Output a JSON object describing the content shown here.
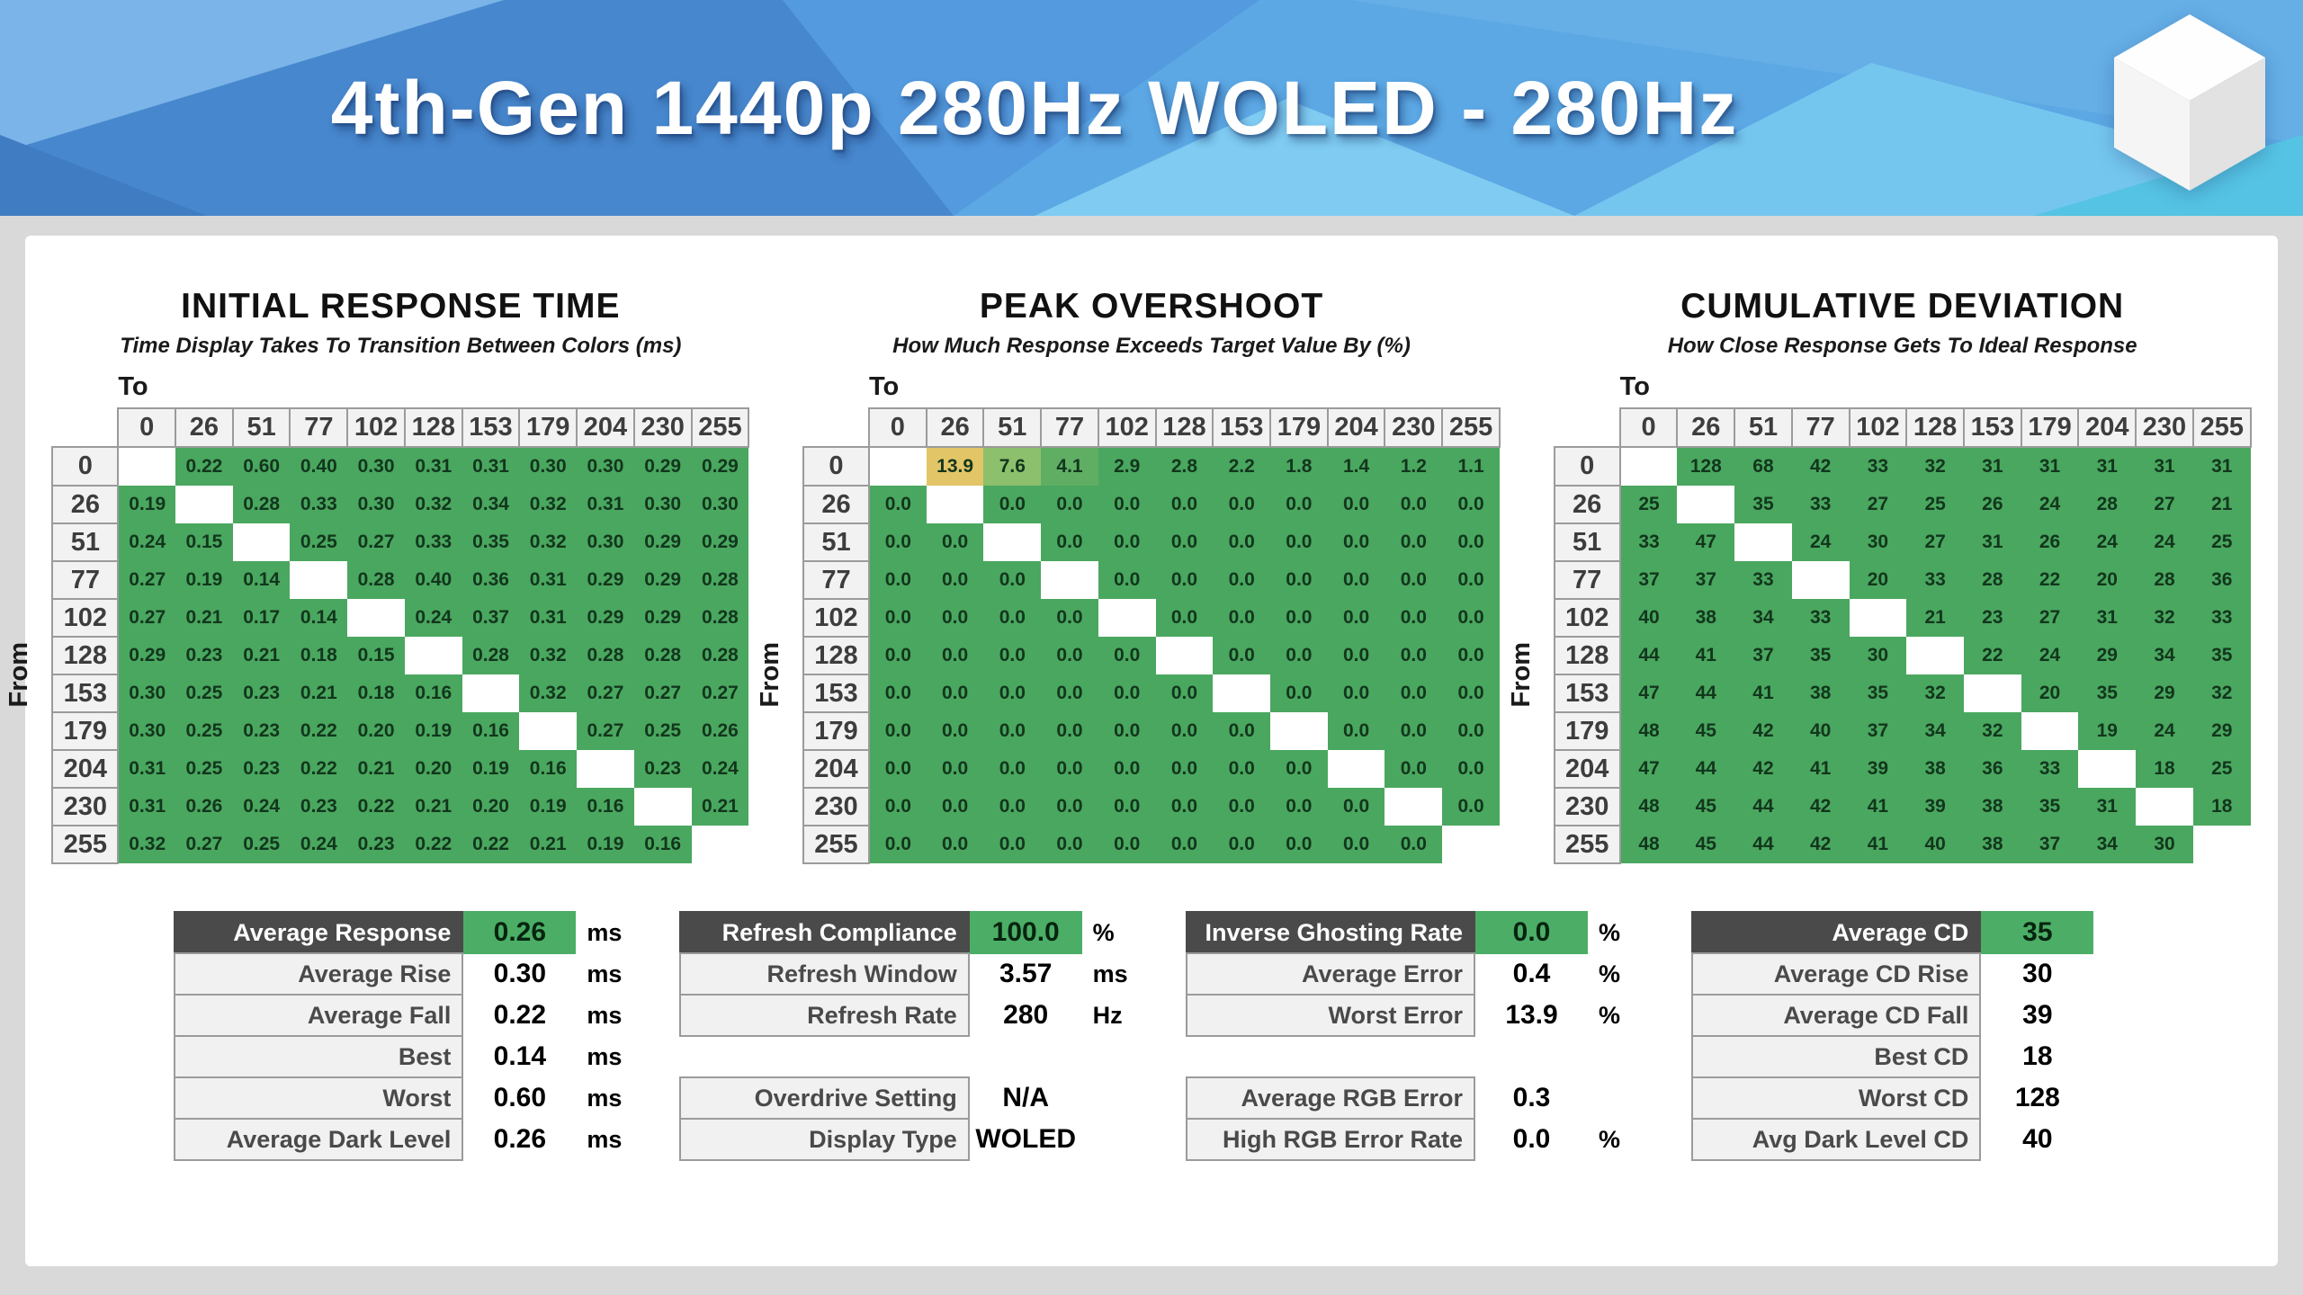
{
  "banner": {
    "title": "4th-Gen 1440p 280Hz WOLED - 280Hz",
    "cube_icon": "cube-logo",
    "colors": {
      "base_blue": "#4f94da",
      "dark_blue": "#4787cd",
      "light_blue": "#7ab4e8",
      "mid_blue": "#5ca8e4",
      "cyan": "#7fcbf1",
      "deep_cyan": "#55c3e4"
    }
  },
  "colors": {
    "page_background": "#d9d9d9",
    "panel_background": "#ffffff",
    "cell_green": "#4aa75f",
    "header_cell_gray": "#f2f2f2",
    "summary_header_dark": "#4a4a4a",
    "summary_value_green": "#4cae66",
    "overshoot_yellow": "#e2c566"
  },
  "chart_data": [
    {
      "type": "heatmap",
      "title": "INITIAL RESPONSE TIME",
      "subtitle": "Time Display Takes To Transition Between Colors (ms)",
      "to_label": "To",
      "from_label": "From",
      "levels": [
        "0",
        "26",
        "51",
        "77",
        "102",
        "128",
        "153",
        "179",
        "204",
        "230",
        "255"
      ],
      "rows": [
        [
          null,
          "0.22",
          "0.60",
          "0.40",
          "0.30",
          "0.31",
          "0.31",
          "0.30",
          "0.30",
          "0.29",
          "0.29"
        ],
        [
          "0.19",
          null,
          "0.28",
          "0.33",
          "0.30",
          "0.32",
          "0.34",
          "0.32",
          "0.31",
          "0.30",
          "0.30"
        ],
        [
          "0.24",
          "0.15",
          null,
          "0.25",
          "0.27",
          "0.33",
          "0.35",
          "0.32",
          "0.30",
          "0.29",
          "0.29"
        ],
        [
          "0.27",
          "0.19",
          "0.14",
          null,
          "0.28",
          "0.40",
          "0.36",
          "0.31",
          "0.29",
          "0.29",
          "0.28"
        ],
        [
          "0.27",
          "0.21",
          "0.17",
          "0.14",
          null,
          "0.24",
          "0.37",
          "0.31",
          "0.29",
          "0.29",
          "0.28"
        ],
        [
          "0.29",
          "0.23",
          "0.21",
          "0.18",
          "0.15",
          null,
          "0.28",
          "0.32",
          "0.28",
          "0.28",
          "0.28"
        ],
        [
          "0.30",
          "0.25",
          "0.23",
          "0.21",
          "0.18",
          "0.16",
          null,
          "0.32",
          "0.27",
          "0.27",
          "0.27"
        ],
        [
          "0.30",
          "0.25",
          "0.23",
          "0.22",
          "0.20",
          "0.19",
          "0.16",
          null,
          "0.27",
          "0.25",
          "0.26"
        ],
        [
          "0.31",
          "0.25",
          "0.23",
          "0.22",
          "0.21",
          "0.20",
          "0.19",
          "0.16",
          null,
          "0.23",
          "0.24"
        ],
        [
          "0.31",
          "0.26",
          "0.24",
          "0.23",
          "0.22",
          "0.21",
          "0.20",
          "0.19",
          "0.16",
          null,
          "0.21"
        ],
        [
          "0.32",
          "0.27",
          "0.25",
          "0.24",
          "0.23",
          "0.22",
          "0.22",
          "0.21",
          "0.19",
          "0.16",
          null
        ]
      ]
    },
    {
      "type": "heatmap",
      "title": "PEAK OVERSHOOT",
      "subtitle": "How Much Response Exceeds Target Value By (%)",
      "to_label": "To",
      "from_label": "From",
      "levels": [
        "0",
        "26",
        "51",
        "77",
        "102",
        "128",
        "153",
        "179",
        "204",
        "230",
        "255"
      ],
      "highlights": {
        "0,1": "#e2c566",
        "0,2": "#8cc06c",
        "0,3": "#5fae63"
      },
      "rows": [
        [
          null,
          "13.9",
          "7.6",
          "4.1",
          "2.9",
          "2.8",
          "2.2",
          "1.8",
          "1.4",
          "1.2",
          "1.1"
        ],
        [
          "0.0",
          null,
          "0.0",
          "0.0",
          "0.0",
          "0.0",
          "0.0",
          "0.0",
          "0.0",
          "0.0",
          "0.0"
        ],
        [
          "0.0",
          "0.0",
          null,
          "0.0",
          "0.0",
          "0.0",
          "0.0",
          "0.0",
          "0.0",
          "0.0",
          "0.0"
        ],
        [
          "0.0",
          "0.0",
          "0.0",
          null,
          "0.0",
          "0.0",
          "0.0",
          "0.0",
          "0.0",
          "0.0",
          "0.0"
        ],
        [
          "0.0",
          "0.0",
          "0.0",
          "0.0",
          null,
          "0.0",
          "0.0",
          "0.0",
          "0.0",
          "0.0",
          "0.0"
        ],
        [
          "0.0",
          "0.0",
          "0.0",
          "0.0",
          "0.0",
          null,
          "0.0",
          "0.0",
          "0.0",
          "0.0",
          "0.0"
        ],
        [
          "0.0",
          "0.0",
          "0.0",
          "0.0",
          "0.0",
          "0.0",
          null,
          "0.0",
          "0.0",
          "0.0",
          "0.0"
        ],
        [
          "0.0",
          "0.0",
          "0.0",
          "0.0",
          "0.0",
          "0.0",
          "0.0",
          null,
          "0.0",
          "0.0",
          "0.0"
        ],
        [
          "0.0",
          "0.0",
          "0.0",
          "0.0",
          "0.0",
          "0.0",
          "0.0",
          "0.0",
          null,
          "0.0",
          "0.0"
        ],
        [
          "0.0",
          "0.0",
          "0.0",
          "0.0",
          "0.0",
          "0.0",
          "0.0",
          "0.0",
          "0.0",
          null,
          "0.0"
        ],
        [
          "0.0",
          "0.0",
          "0.0",
          "0.0",
          "0.0",
          "0.0",
          "0.0",
          "0.0",
          "0.0",
          "0.0",
          null
        ]
      ]
    },
    {
      "type": "heatmap",
      "title": "CUMULATIVE DEVIATION",
      "subtitle": "How Close Response Gets To Ideal Response",
      "to_label": "To",
      "from_label": "From",
      "levels": [
        "0",
        "26",
        "51",
        "77",
        "102",
        "128",
        "153",
        "179",
        "204",
        "230",
        "255"
      ],
      "rows": [
        [
          null,
          "128",
          "68",
          "42",
          "33",
          "32",
          "31",
          "31",
          "31",
          "31",
          "31"
        ],
        [
          "25",
          null,
          "35",
          "33",
          "27",
          "25",
          "26",
          "24",
          "28",
          "27",
          "21"
        ],
        [
          "33",
          "47",
          null,
          "24",
          "30",
          "27",
          "31",
          "26",
          "24",
          "24",
          "25"
        ],
        [
          "37",
          "37",
          "33",
          null,
          "20",
          "33",
          "28",
          "22",
          "20",
          "28",
          "36"
        ],
        [
          "40",
          "38",
          "34",
          "33",
          null,
          "21",
          "23",
          "27",
          "31",
          "32",
          "33"
        ],
        [
          "44",
          "41",
          "37",
          "35",
          "30",
          null,
          "22",
          "24",
          "29",
          "34",
          "35"
        ],
        [
          "47",
          "44",
          "41",
          "38",
          "35",
          "32",
          null,
          "20",
          "35",
          "29",
          "32"
        ],
        [
          "48",
          "45",
          "42",
          "40",
          "37",
          "34",
          "32",
          null,
          "19",
          "24",
          "29"
        ],
        [
          "47",
          "44",
          "42",
          "41",
          "39",
          "38",
          "36",
          "33",
          null,
          "18",
          "25"
        ],
        [
          "48",
          "45",
          "44",
          "42",
          "41",
          "39",
          "38",
          "35",
          "31",
          null,
          "18"
        ],
        [
          "48",
          "45",
          "44",
          "42",
          "41",
          "40",
          "38",
          "37",
          "34",
          "30",
          null
        ]
      ]
    }
  ],
  "summary": {
    "blocks": [
      {
        "rows": [
          {
            "label": "Average Response",
            "value": "0.26",
            "unit": "ms",
            "header": true
          },
          {
            "label": "Average Rise",
            "value": "0.30",
            "unit": "ms"
          },
          {
            "label": "Average Fall",
            "value": "0.22",
            "unit": "ms"
          },
          {
            "label": "Best",
            "value": "0.14",
            "unit": "ms"
          },
          {
            "label": "Worst",
            "value": "0.60",
            "unit": "ms"
          },
          {
            "label": "Average Dark Level",
            "value": "0.26",
            "unit": "ms"
          }
        ]
      },
      {
        "rows": [
          {
            "label": "Refresh Compliance",
            "value": "100.0",
            "unit": "%",
            "header": true
          },
          {
            "label": "Refresh Window",
            "value": "3.57",
            "unit": "ms"
          },
          {
            "label": "Refresh Rate",
            "value": "280",
            "unit": "Hz"
          },
          {
            "label": "Overdrive Setting",
            "value": "N/A",
            "unit": "",
            "gap": true
          },
          {
            "label": "Display Type",
            "value": "WOLED",
            "unit": ""
          }
        ]
      },
      {
        "rows": [
          {
            "label": "Inverse Ghosting Rate",
            "value": "0.0",
            "unit": "%",
            "header": true
          },
          {
            "label": "Average Error",
            "value": "0.4",
            "unit": "%"
          },
          {
            "label": "Worst Error",
            "value": "13.9",
            "unit": "%"
          },
          {
            "label": "Average RGB Error",
            "value": "0.3",
            "unit": "",
            "gap": true
          },
          {
            "label": "High RGB Error Rate",
            "value": "0.0",
            "unit": "%"
          }
        ]
      },
      {
        "rows": [
          {
            "label": "Average CD",
            "value": "35",
            "unit": "",
            "header": true
          },
          {
            "label": "Average CD Rise",
            "value": "30",
            "unit": ""
          },
          {
            "label": "Average CD Fall",
            "value": "39",
            "unit": ""
          },
          {
            "label": "Best CD",
            "value": "18",
            "unit": ""
          },
          {
            "label": "Worst CD",
            "value": "128",
            "unit": ""
          },
          {
            "label": "Avg Dark Level CD",
            "value": "40",
            "unit": ""
          }
        ]
      }
    ]
  }
}
